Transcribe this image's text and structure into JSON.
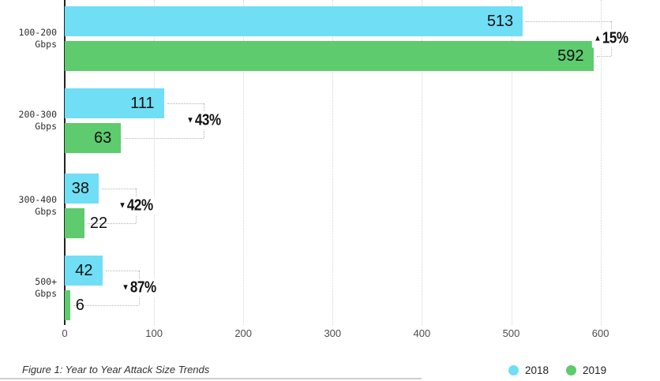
{
  "figure": {
    "caption": "Figure 1: Year to Year Attack Size Trends"
  },
  "legend": {
    "items": [
      {
        "label": "2018",
        "color": "#70DEF5"
      },
      {
        "label": "2019",
        "color": "#5DCB6E"
      }
    ]
  },
  "chart_data": {
    "type": "bar",
    "orientation": "horizontal",
    "title": "",
    "categories": [
      "100-200 Gbps",
      "200-300 Gbps",
      "300-400 Gbps",
      "500+ Gbps"
    ],
    "series": [
      {
        "name": "2018",
        "color": "#70DEF5",
        "values": [
          513,
          111,
          38,
          42
        ]
      },
      {
        "name": "2019",
        "color": "#5DCB6E",
        "values": [
          592,
          63,
          22,
          6
        ]
      }
    ],
    "changes": [
      {
        "direction": "up",
        "label": "15%"
      },
      {
        "direction": "down",
        "label": "43%"
      },
      {
        "direction": "down",
        "label": "42%"
      },
      {
        "direction": "down",
        "label": "87%"
      }
    ],
    "x_ticks": [
      0,
      100,
      200,
      300,
      400,
      500,
      600
    ],
    "xlim": [
      0,
      660
    ],
    "xlabel": "",
    "ylabel": "",
    "grid": "vertical-dotted",
    "legend_position": "bottom-right",
    "value_labels": "inside-end",
    "colors": {
      "axis": "#222222",
      "gridline": "#d4d4d4",
      "connector": "#b5b5b5",
      "text": "#111111"
    }
  }
}
